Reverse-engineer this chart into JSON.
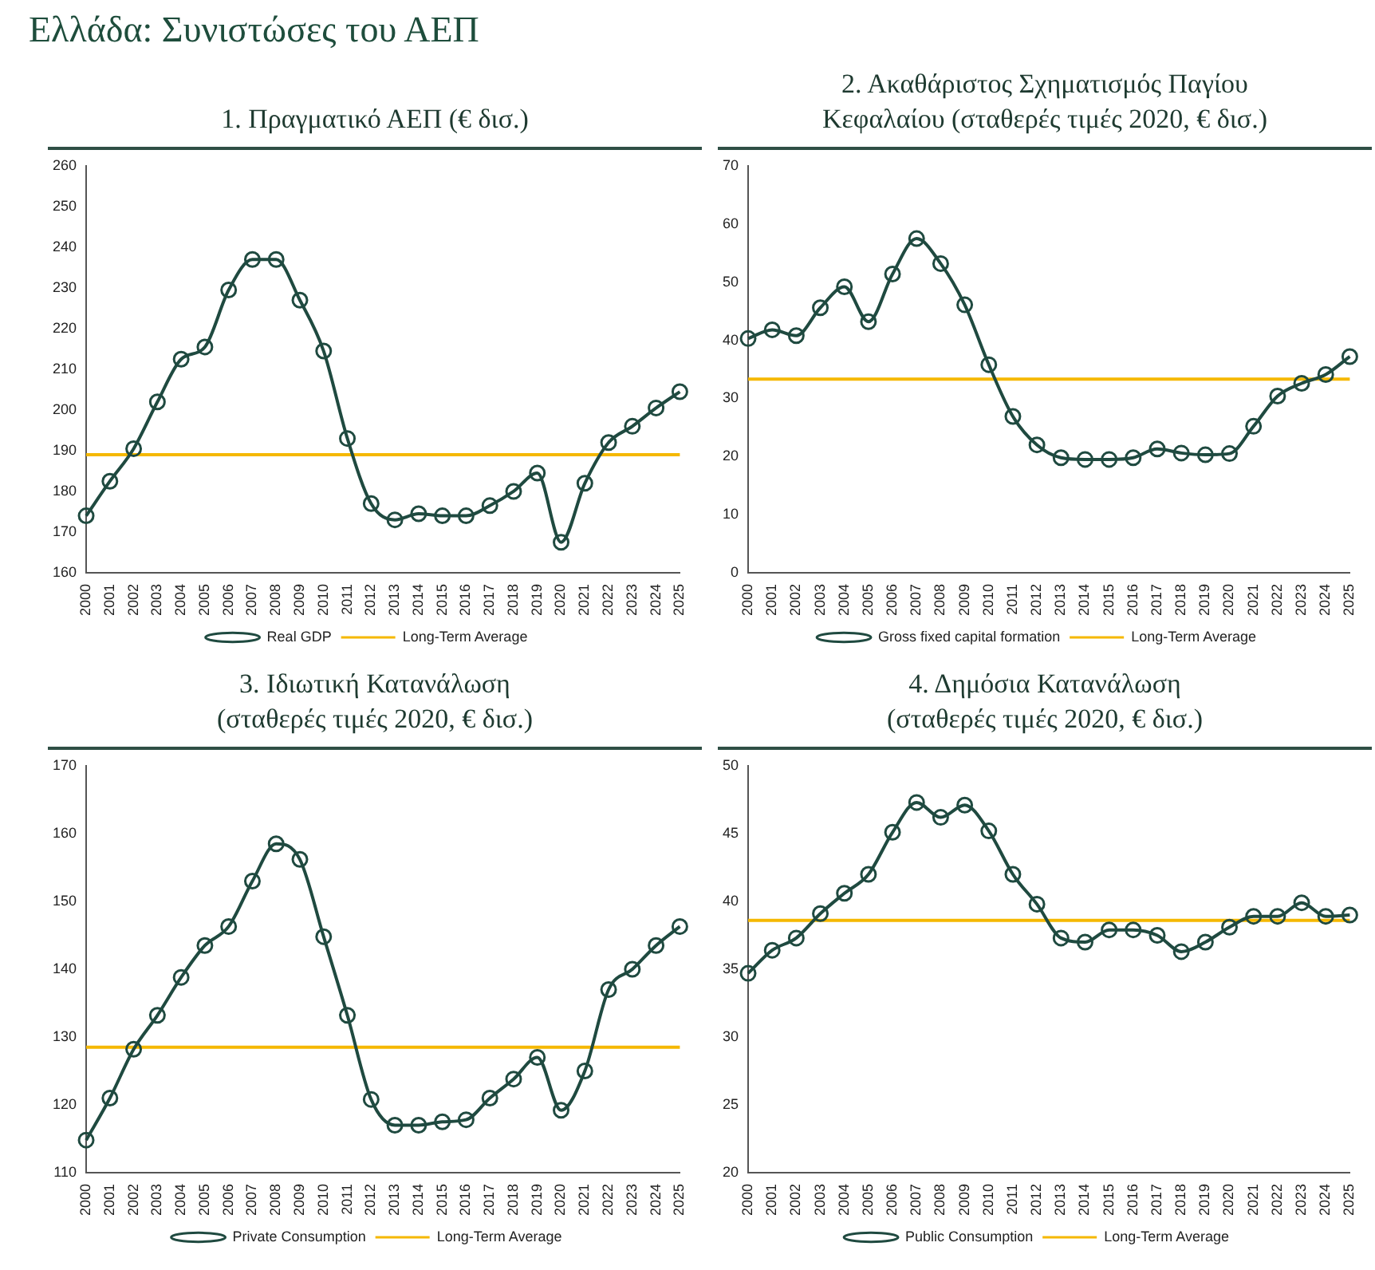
{
  "chart_data": [
    {
      "type": "line",
      "title": "1. Πραγματικό ΑΕΠ (€ δισ.)",
      "annotations": [
        "Ελλάδα: Συνιστώσες του ΑΕΠ"
      ],
      "categories": [
        "2000",
        "2001",
        "2002",
        "2003",
        "2004",
        "2005",
        "2006",
        "2007",
        "2008",
        "2009",
        "2010",
        "2011",
        "2012",
        "2013",
        "2014",
        "2015",
        "2016",
        "2017",
        "2018",
        "2019",
        "2020",
        "2021",
        "2022",
        "2023",
        "2024",
        "2025"
      ],
      "series": [
        {
          "name": "Real GDP",
          "color": "#1f4a40",
          "values": [
            174,
            182.5,
            190.5,
            202,
            212.5,
            215.5,
            229.5,
            237,
            237,
            227,
            214.5,
            193,
            177,
            173,
            174.5,
            174,
            174,
            176.5,
            180,
            184.5,
            167.5,
            182,
            192,
            196,
            200.5,
            204.5
          ]
        },
        {
          "name": "Long-Term Average",
          "color": "#f5b800",
          "marker": "none",
          "values": [
            189,
            189,
            189,
            189,
            189,
            189,
            189,
            189,
            189,
            189,
            189,
            189,
            189,
            189,
            189,
            189,
            189,
            189,
            189,
            189,
            189,
            189,
            189,
            189,
            189,
            189
          ]
        }
      ],
      "ylim": [
        160,
        260
      ],
      "yticks": [
        160,
        170,
        180,
        190,
        200,
        210,
        220,
        230,
        240,
        250,
        260
      ],
      "grid": false,
      "legend": "bottom",
      "marker": "circle",
      "line_style": "solid"
    },
    {
      "type": "line",
      "title": "2. Ακαθάριστος Σχηματισμός Παγίου\nΚεφαλαίου (σταθερές τιμές 2020, € δισ.)",
      "categories": [
        "2000",
        "2001",
        "2002",
        "2003",
        "2004",
        "2005",
        "2006",
        "2007",
        "2008",
        "2009",
        "2010",
        "2011",
        "2012",
        "2013",
        "2014",
        "2015",
        "2016",
        "2017",
        "2018",
        "2019",
        "2020",
        "2021",
        "2022",
        "2023",
        "2024",
        "2025"
      ],
      "series": [
        {
          "name": "Gross fixed capital formation",
          "color": "#1f4a40",
          "values": [
            40.3,
            41.8,
            40.8,
            45.6,
            49.2,
            43.2,
            51.4,
            57.5,
            53.2,
            46.1,
            35.8,
            26.9,
            22,
            19.8,
            19.5,
            19.5,
            19.8,
            21.3,
            20.6,
            20.3,
            20.5,
            25.2,
            30.4,
            32.6,
            34.1,
            37.2
          ]
        },
        {
          "name": "Long-Term Average",
          "color": "#f5b800",
          "marker": "none",
          "values": [
            33.3,
            33.3,
            33.3,
            33.3,
            33.3,
            33.3,
            33.3,
            33.3,
            33.3,
            33.3,
            33.3,
            33.3,
            33.3,
            33.3,
            33.3,
            33.3,
            33.3,
            33.3,
            33.3,
            33.3,
            33.3,
            33.3,
            33.3,
            33.3,
            33.3,
            33.3
          ]
        }
      ],
      "ylim": [
        0,
        70
      ],
      "yticks": [
        0,
        10,
        20,
        30,
        40,
        50,
        60,
        70
      ],
      "grid": false,
      "legend": "bottom",
      "marker": "circle",
      "line_style": "solid"
    },
    {
      "type": "line",
      "title": "3. Ιδιωτική Κατανάλωση\n(σταθερές τιμές 2020, € δισ.)",
      "categories": [
        "2000",
        "2001",
        "2002",
        "2003",
        "2004",
        "2005",
        "2006",
        "2007",
        "2008",
        "2009",
        "2010",
        "2011",
        "2012",
        "2013",
        "2014",
        "2015",
        "2016",
        "2017",
        "2018",
        "2019",
        "2020",
        "2021",
        "2022",
        "2023",
        "2024",
        "2025"
      ],
      "series": [
        {
          "name": "Private Consumption",
          "color": "#1f4a40",
          "values": [
            114.8,
            121,
            128.2,
            133.2,
            138.8,
            143.5,
            146.3,
            153,
            158.5,
            156.2,
            144.8,
            133.2,
            120.8,
            117,
            117,
            117.5,
            117.8,
            121,
            123.8,
            127,
            119.2,
            125,
            137,
            140,
            143.5,
            146.3
          ]
        },
        {
          "name": "Long-Term Average",
          "color": "#f5b800",
          "marker": "none",
          "values": [
            128.5,
            128.5,
            128.5,
            128.5,
            128.5,
            128.5,
            128.5,
            128.5,
            128.5,
            128.5,
            128.5,
            128.5,
            128.5,
            128.5,
            128.5,
            128.5,
            128.5,
            128.5,
            128.5,
            128.5,
            128.5,
            128.5,
            128.5,
            128.5,
            128.5,
            128.5
          ]
        }
      ],
      "ylim": [
        110,
        170
      ],
      "yticks": [
        110,
        120,
        130,
        140,
        150,
        160,
        170
      ],
      "grid": false,
      "legend": "bottom",
      "marker": "circle",
      "line_style": "solid"
    },
    {
      "type": "line",
      "title": "4. Δημόσια Κατανάλωση\n(σταθερές τιμές 2020, € δισ.)",
      "categories": [
        "2000",
        "2001",
        "2002",
        "2003",
        "2004",
        "2005",
        "2006",
        "2007",
        "2008",
        "2009",
        "2010",
        "2011",
        "2012",
        "2013",
        "2014",
        "2015",
        "2016",
        "2017",
        "2018",
        "2019",
        "2020",
        "2021",
        "2022",
        "2023",
        "2024",
        "2025"
      ],
      "series": [
        {
          "name": "Public Consumption",
          "color": "#1f4a40",
          "values": [
            34.7,
            36.4,
            37.3,
            39.1,
            40.6,
            42,
            45.1,
            47.3,
            46.2,
            47.1,
            45.2,
            42,
            39.8,
            37.3,
            37,
            37.9,
            37.9,
            37.5,
            36.3,
            37,
            38.1,
            38.9,
            38.9,
            39.9,
            38.9,
            39
          ]
        },
        {
          "name": "Long-Term Average",
          "color": "#f5b800",
          "marker": "none",
          "values": [
            38.6,
            38.6,
            38.6,
            38.6,
            38.6,
            38.6,
            38.6,
            38.6,
            38.6,
            38.6,
            38.6,
            38.6,
            38.6,
            38.6,
            38.6,
            38.6,
            38.6,
            38.6,
            38.6,
            38.6,
            38.6,
            38.6,
            38.6,
            38.6,
            38.6,
            38.6
          ]
        }
      ],
      "ylim": [
        20,
        50
      ],
      "yticks": [
        20,
        25,
        30,
        35,
        40,
        45,
        50
      ],
      "grid": false,
      "legend": "bottom",
      "marker": "circle",
      "line_style": "solid"
    }
  ]
}
